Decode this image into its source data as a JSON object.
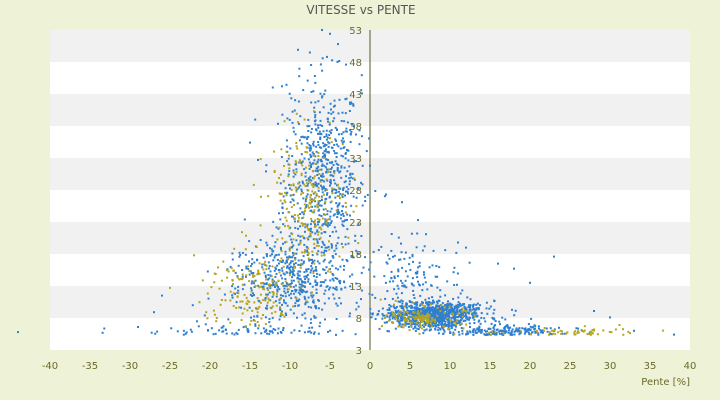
{
  "chart_data": {
    "type": "scatter",
    "title": "VITESSE vs PENTE",
    "xlabel": "Pente [%]",
    "ylabel": "",
    "xlim": [
      -40,
      40
    ],
    "ylim": [
      3,
      53
    ],
    "x_ticks": [
      -40,
      -35,
      -30,
      -25,
      -20,
      -15,
      -10,
      -5,
      0,
      5,
      10,
      15,
      20,
      25,
      30,
      35,
      40
    ],
    "y_ticks": [
      3,
      8,
      13,
      18,
      23,
      28,
      33,
      38,
      43,
      48,
      53
    ],
    "grid": "horizontal alternating bands",
    "legend": "none",
    "series": [
      {
        "color": "#2f7fd1",
        "clusters": [
          {
            "x_center": -6,
            "x_spread": 4,
            "y_center": 30,
            "y_spread": 13,
            "count": 650
          },
          {
            "x_center": -10,
            "x_spread": 6,
            "y_center": 14,
            "y_spread": 6,
            "count": 500
          },
          {
            "x_center": 8,
            "x_spread": 5,
            "y_center": 8.5,
            "y_spread": 1.8,
            "count": 900
          },
          {
            "x_center": 17,
            "x_spread": 6,
            "y_center": 5.8,
            "y_spread": 0.9,
            "count": 220
          },
          {
            "x_center": 5,
            "x_spread": 5,
            "y_center": 14,
            "y_spread": 5,
            "count": 140
          },
          {
            "x_center": -15,
            "x_spread": 10,
            "y_center": 5.5,
            "y_spread": 1.2,
            "count": 160
          },
          {
            "x_center": -32,
            "x_spread": 8,
            "y_center": 4.2,
            "y_spread": 0.4,
            "count": 30
          }
        ],
        "points": [
          [
            -44,
            5.8
          ],
          [
            -43,
            4.0
          ],
          [
            -42,
            4.1
          ],
          [
            -40,
            3.7
          ],
          [
            -38,
            4.2
          ],
          [
            -35,
            3.8
          ],
          [
            -31,
            3.9
          ],
          [
            -29,
            6.6
          ],
          [
            -27,
            8.9
          ],
          [
            -26,
            11.5
          ],
          [
            -15,
            35.4
          ],
          [
            -14,
            32.7
          ],
          [
            -13,
            30.9
          ],
          [
            -11,
            44.2
          ],
          [
            -9,
            49.9
          ],
          [
            -6,
            53.0
          ],
          [
            -5,
            52.4
          ],
          [
            -4,
            50.8
          ],
          [
            -3,
            47.6
          ],
          [
            -1,
            43.1
          ],
          [
            0,
            31.8
          ],
          [
            2,
            27.3
          ],
          [
            4,
            26.1
          ],
          [
            6,
            23.3
          ],
          [
            7,
            21.1
          ],
          [
            11,
            19.8
          ],
          [
            12,
            19.0
          ],
          [
            16,
            16.5
          ],
          [
            18,
            15.7
          ],
          [
            20,
            13.5
          ],
          [
            23,
            17.6
          ],
          [
            28,
            9.1
          ],
          [
            30,
            8.1
          ],
          [
            33,
            6.0
          ],
          [
            35,
            5.2
          ],
          [
            38,
            5.4
          ],
          [
            43,
            4.1
          ]
        ]
      },
      {
        "color": "#b6a51e",
        "clusters": [
          {
            "x_center": -8,
            "x_spread": 4,
            "y_center": 26,
            "y_spread": 9,
            "count": 230
          },
          {
            "x_center": -15,
            "x_spread": 5,
            "y_center": 12,
            "y_spread": 5,
            "count": 150
          },
          {
            "x_center": 7,
            "x_spread": 4,
            "y_center": 8,
            "y_spread": 1.5,
            "count": 140
          },
          {
            "x_center": 25,
            "x_spread": 7,
            "y_center": 5.6,
            "y_spread": 0.8,
            "count": 70
          }
        ],
        "points": [
          [
            -25,
            12.7
          ],
          [
            -22,
            17.8
          ],
          [
            -19,
            15.9
          ],
          [
            -16,
            21.4
          ],
          [
            -12,
            34.0
          ],
          [
            -9,
            38.6
          ],
          [
            -7,
            40.3
          ],
          [
            -5,
            36.1
          ],
          [
            -2,
            29.8
          ],
          [
            3,
            10.1
          ],
          [
            24,
            5.9
          ],
          [
            28,
            6.2
          ],
          [
            34,
            5.0
          ],
          [
            36,
            4.8
          ]
        ]
      }
    ]
  }
}
